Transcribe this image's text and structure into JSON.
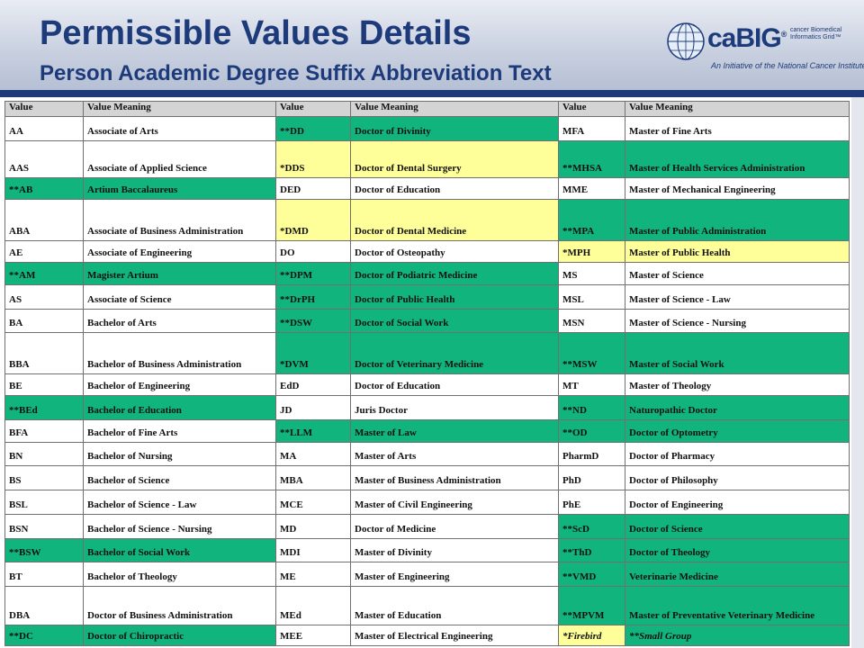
{
  "header": {
    "title": "Permissible Values Details",
    "subtitle": "Person Academic Degree Suffix Abbreviation Text",
    "logo": {
      "word": "caBIG",
      "trademark": "®",
      "tagline": "cancer Biomedical Informatics Grid™",
      "initiative": "An Initiative of the National Cancer Institute",
      "icon": "globe-icon"
    }
  },
  "colors": {
    "green": "#12b47e",
    "yellow": "#ffff99",
    "header_blue": "#1d3a7a",
    "th_gray": "#d4d4d4"
  },
  "table": {
    "headers": [
      "Value",
      "Value Meaning",
      "Value",
      "Value Meaning",
      "Value",
      "Value Meaning"
    ],
    "rows": [
      [
        {
          "v": "AA",
          "m": "Associate of Arts",
          "c": ""
        },
        {
          "v": "**DD",
          "m": "Doctor of Divinity",
          "c": "green"
        },
        {
          "v": "MFA",
          "m": "Master of Fine Arts",
          "c": ""
        }
      ],
      [
        {
          "v": "AAS",
          "m": "Associate of Applied Science",
          "c": ""
        },
        {
          "v": "*DDS",
          "m": "Doctor of Dental Surgery",
          "c": "yellow"
        },
        {
          "v": "**MHSA",
          "m": "Master of Health Services Administration",
          "c": "green"
        }
      ],
      [
        {
          "v": "**AB",
          "m": "Artium Baccalaureus",
          "c": "green"
        },
        {
          "v": "DED",
          "m": "Doctor of Education",
          "c": ""
        },
        {
          "v": "MME",
          "m": "Master of Mechanical Engineering",
          "c": ""
        }
      ],
      [
        {
          "v": "ABA",
          "m": "Associate of Business Administration",
          "c": ""
        },
        {
          "v": "*DMD",
          "m": "Doctor of Dental Medicine",
          "c": "yellow"
        },
        {
          "v": "**MPA",
          "m": "Master of Public Administration",
          "c": "green"
        }
      ],
      [
        {
          "v": "AE",
          "m": "Associate of Engineering",
          "c": ""
        },
        {
          "v": "DO",
          "m": "Doctor of Osteopathy",
          "c": ""
        },
        {
          "v": "*MPH",
          "m": "Master of Public Health",
          "c": "yellow"
        }
      ],
      [
        {
          "v": "**AM",
          "m": "Magister Artium",
          "c": "green"
        },
        {
          "v": "**DPM",
          "m": "Doctor of Podiatric Medicine",
          "c": "green"
        },
        {
          "v": "MS",
          "m": "Master of Science",
          "c": ""
        }
      ],
      [
        {
          "v": "AS",
          "m": "Associate of Science",
          "c": ""
        },
        {
          "v": "**DrPH",
          "m": "Doctor of Public Health",
          "c": "green"
        },
        {
          "v": "MSL",
          "m": "Master of Science - Law",
          "c": ""
        }
      ],
      [
        {
          "v": "BA",
          "m": "Bachelor of Arts",
          "c": ""
        },
        {
          "v": "**DSW",
          "m": "Doctor of Social Work",
          "c": "green"
        },
        {
          "v": "MSN",
          "m": "Master of Science - Nursing",
          "c": ""
        }
      ],
      [
        {
          "v": "BBA",
          "m": "Bachelor of Business Administration",
          "c": ""
        },
        {
          "v": "*DVM",
          "m": "Doctor of Veterinary Medicine",
          "c": "green"
        },
        {
          "v": "**MSW",
          "m": "Master of Social Work",
          "c": "green"
        }
      ],
      [
        {
          "v": "BE",
          "m": "Bachelor of Engineering",
          "c": ""
        },
        {
          "v": "EdD",
          "m": "Doctor of Education",
          "c": ""
        },
        {
          "v": "MT",
          "m": "Master of Theology",
          "c": ""
        }
      ],
      [
        {
          "v": "**BEd",
          "m": "Bachelor of Education",
          "c": "green"
        },
        {
          "v": "JD",
          "m": "Juris Doctor",
          "c": ""
        },
        {
          "v": "**ND",
          "m": "Naturopathic Doctor",
          "c": "green"
        }
      ],
      [
        {
          "v": "BFA",
          "m": "Bachelor of Fine Arts",
          "c": ""
        },
        {
          "v": "**LLM",
          "m": "Master of Law",
          "c": "green"
        },
        {
          "v": "**OD",
          "m": "Doctor of Optometry",
          "c": "green"
        }
      ],
      [
        {
          "v": "BN",
          "m": "Bachelor of Nursing",
          "c": ""
        },
        {
          "v": "MA",
          "m": "Master of Arts",
          "c": ""
        },
        {
          "v": "PharmD",
          "m": "Doctor of Pharmacy",
          "c": ""
        }
      ],
      [
        {
          "v": "BS",
          "m": "Bachelor of Science",
          "c": ""
        },
        {
          "v": "MBA",
          "m": "Master of Business Administration",
          "c": ""
        },
        {
          "v": "PhD",
          "m": "Doctor of Philosophy",
          "c": ""
        }
      ],
      [
        {
          "v": "BSL",
          "m": "Bachelor of Science - Law",
          "c": ""
        },
        {
          "v": "MCE",
          "m": "Master of Civil Engineering",
          "c": ""
        },
        {
          "v": "PhE",
          "m": "Doctor of Engineering",
          "c": ""
        }
      ],
      [
        {
          "v": "BSN",
          "m": "Bachelor of Science - Nursing",
          "c": ""
        },
        {
          "v": "MD",
          "m": "Doctor of Medicine",
          "c": ""
        },
        {
          "v": "**ScD",
          "m": "Doctor of Science",
          "c": "green"
        }
      ],
      [
        {
          "v": "**BSW",
          "m": "Bachelor of Social Work",
          "c": "green"
        },
        {
          "v": "MDI",
          "m": "Master of Divinity",
          "c": ""
        },
        {
          "v": "**ThD",
          "m": "Doctor of Theology",
          "c": "green"
        }
      ],
      [
        {
          "v": "BT",
          "m": "Bachelor of Theology",
          "c": ""
        },
        {
          "v": "ME",
          "m": "Master of Engineering",
          "c": ""
        },
        {
          "v": "**VMD",
          "m": "Veterinarie Medicine",
          "c": "green"
        }
      ],
      [
        {
          "v": "DBA",
          "m": "Doctor of Business Administration",
          "c": ""
        },
        {
          "v": "MEd",
          "m": "Master of Education",
          "c": ""
        },
        {
          "v": "**MPVM",
          "m": "Master of Preventative Veterinary Medicine",
          "c": "green"
        }
      ],
      [
        {
          "v": "**DC",
          "m": "Doctor of Chiropractic",
          "c": "green"
        },
        {
          "v": "MEE",
          "m": "Master of Electrical Engineering",
          "c": ""
        },
        {
          "v": "*Firebird",
          "m": "**Small Group",
          "c": "legend"
        }
      ]
    ]
  }
}
